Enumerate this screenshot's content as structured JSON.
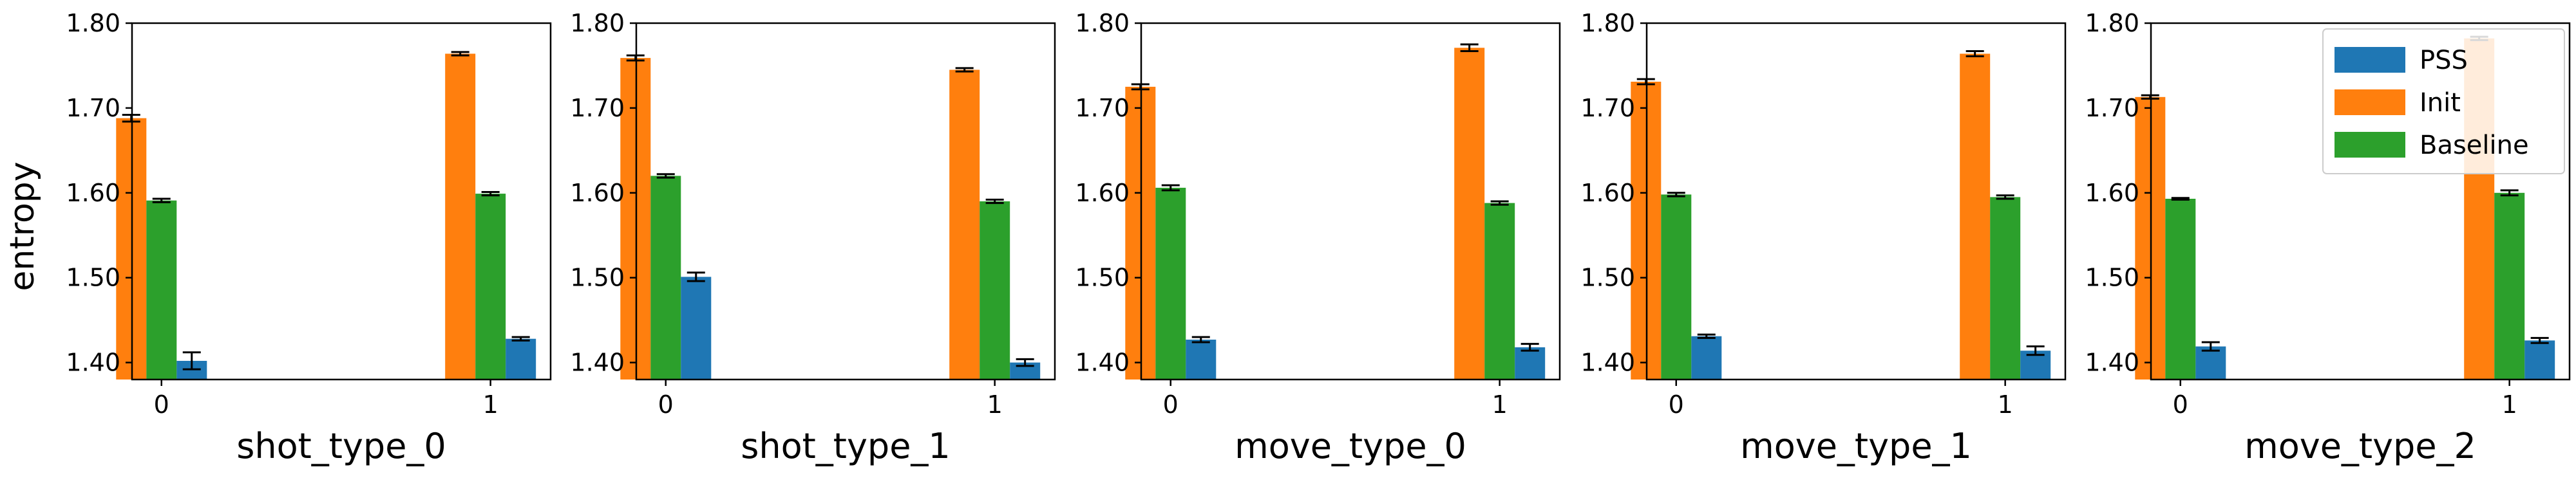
{
  "ylabel": "entropy",
  "legend": {
    "location": "top-right",
    "entries": [
      {
        "name": "PSS",
        "color": "#1f77b4"
      },
      {
        "name": "Init",
        "color": "#ff7f0e"
      },
      {
        "name": "Baseline",
        "color": "#2ca02c"
      }
    ]
  },
  "chart_data": [
    {
      "type": "bar",
      "xlabel": "shot_type_0",
      "ylabel": "entropy",
      "categories": [
        "0",
        "1"
      ],
      "ylim": [
        1.38,
        1.8
      ],
      "yticks": [
        "1.40",
        "1.50",
        "1.60",
        "1.70",
        "1.80"
      ],
      "series": [
        {
          "name": "Init",
          "color": "#ff7f0e",
          "values": [
            1.688,
            1.764
          ],
          "errors": [
            0.004,
            0.002
          ]
        },
        {
          "name": "Baseline",
          "color": "#2ca02c",
          "values": [
            1.591,
            1.599
          ],
          "errors": [
            0.002,
            0.002
          ]
        },
        {
          "name": "PSS",
          "color": "#1f77b4",
          "values": [
            1.402,
            1.428
          ],
          "errors": [
            0.01,
            0.002
          ]
        }
      ]
    },
    {
      "type": "bar",
      "xlabel": "shot_type_1",
      "categories": [
        "0",
        "1"
      ],
      "ylim": [
        1.38,
        1.8
      ],
      "yticks": [
        "1.40",
        "1.50",
        "1.60",
        "1.70",
        "1.80"
      ],
      "series": [
        {
          "name": "Init",
          "color": "#ff7f0e",
          "values": [
            1.759,
            1.745
          ],
          "errors": [
            0.003,
            0.002
          ]
        },
        {
          "name": "Baseline",
          "color": "#2ca02c",
          "values": [
            1.62,
            1.59
          ],
          "errors": [
            0.002,
            0.002
          ]
        },
        {
          "name": "PSS",
          "color": "#1f77b4",
          "values": [
            1.501,
            1.4
          ],
          "errors": [
            0.005,
            0.004
          ]
        }
      ]
    },
    {
      "type": "bar",
      "xlabel": "move_type_0",
      "categories": [
        "0",
        "1"
      ],
      "ylim": [
        1.38,
        1.8
      ],
      "yticks": [
        "1.40",
        "1.50",
        "1.60",
        "1.70",
        "1.80"
      ],
      "series": [
        {
          "name": "Init",
          "color": "#ff7f0e",
          "values": [
            1.725,
            1.771
          ],
          "errors": [
            0.003,
            0.004
          ]
        },
        {
          "name": "Baseline",
          "color": "#2ca02c",
          "values": [
            1.606,
            1.588
          ],
          "errors": [
            0.003,
            0.002
          ]
        },
        {
          "name": "PSS",
          "color": "#1f77b4",
          "values": [
            1.427,
            1.418
          ],
          "errors": [
            0.003,
            0.004
          ]
        }
      ]
    },
    {
      "type": "bar",
      "xlabel": "move_type_1",
      "categories": [
        "0",
        "1"
      ],
      "ylim": [
        1.38,
        1.8
      ],
      "yticks": [
        "1.40",
        "1.50",
        "1.60",
        "1.70",
        "1.80"
      ],
      "series": [
        {
          "name": "Init",
          "color": "#ff7f0e",
          "values": [
            1.731,
            1.764
          ],
          "errors": [
            0.003,
            0.003
          ]
        },
        {
          "name": "Baseline",
          "color": "#2ca02c",
          "values": [
            1.598,
            1.595
          ],
          "errors": [
            0.002,
            0.002
          ]
        },
        {
          "name": "PSS",
          "color": "#1f77b4",
          "values": [
            1.431,
            1.414
          ],
          "errors": [
            0.002,
            0.005
          ]
        }
      ]
    },
    {
      "type": "bar",
      "xlabel": "move_type_2",
      "categories": [
        "0",
        "1"
      ],
      "ylim": [
        1.38,
        1.8
      ],
      "yticks": [
        "1.40",
        "1.50",
        "1.60",
        "1.70",
        "1.80"
      ],
      "series": [
        {
          "name": "Init",
          "color": "#ff7f0e",
          "values": [
            1.713,
            1.782
          ],
          "errors": [
            0.002,
            0.002
          ]
        },
        {
          "name": "Baseline",
          "color": "#2ca02c",
          "values": [
            1.593,
            1.6
          ],
          "errors": [
            0.001,
            0.003
          ]
        },
        {
          "name": "PSS",
          "color": "#1f77b4",
          "values": [
            1.419,
            1.426
          ],
          "errors": [
            0.005,
            0.003
          ]
        }
      ]
    }
  ]
}
